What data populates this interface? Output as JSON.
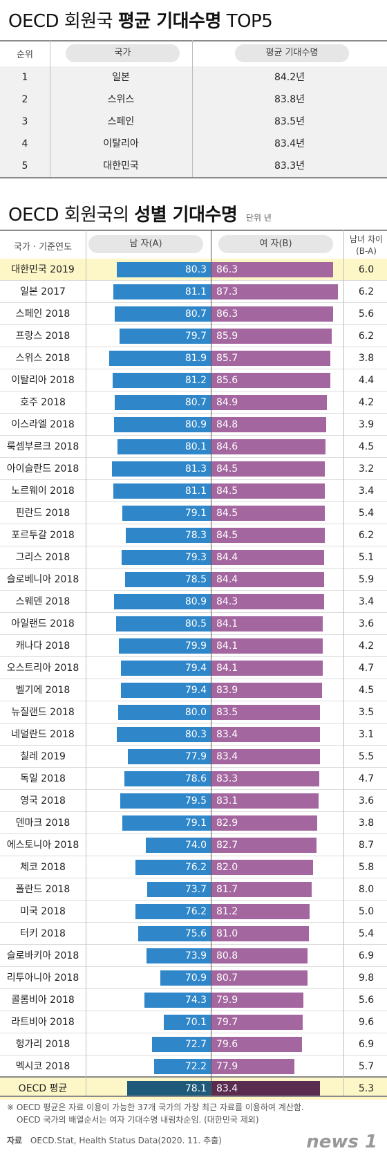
{
  "top5": {
    "title_plain": "OECD 회원국 ",
    "title_bold": "평균 기대수명",
    "title_end": " TOP5",
    "headers": {
      "rank": "순위",
      "country": "국가",
      "value": "평균 기대수명"
    },
    "rows": [
      {
        "rank": "1",
        "country": "일본",
        "value": "84.2년"
      },
      {
        "rank": "2",
        "country": "스위스",
        "value": "83.8년"
      },
      {
        "rank": "3",
        "country": "스페인",
        "value": "83.5년"
      },
      {
        "rank": "4",
        "country": "이탈리아",
        "value": "83.4년"
      },
      {
        "rank": "5",
        "country": "대한민국",
        "value": "83.3년"
      }
    ]
  },
  "chart_data": {
    "type": "bar",
    "title_plain": "OECD 회원국의 ",
    "title_bold": "성별 기대수명",
    "unit": "단위 년",
    "headers": {
      "country": "국가 · 기준연도",
      "male": "남 자(A)",
      "female": "여 자(B)",
      "diff_line1": "남녀 차이",
      "diff_line2": "(B-A)"
    },
    "categories": [
      "대한민국 2019",
      "일본 2017",
      "스페인 2018",
      "프랑스 2018",
      "스위스 2018",
      "이탈리아 2018",
      "호주 2018",
      "이스라엘 2018",
      "룩셈부르크 2018",
      "아이슬란드 2018",
      "노르웨이 2018",
      "핀란드 2018",
      "포르투갈 2018",
      "그리스 2018",
      "슬로베니아 2018",
      "스웨덴 2018",
      "아일랜드 2018",
      "캐나다 2018",
      "오스트리아 2018",
      "벨기에 2018",
      "뉴질랜드 2018",
      "네덜란드 2018",
      "칠레 2019",
      "독일 2018",
      "영국 2018",
      "덴마크 2018",
      "에스토니아 2018",
      "체코 2018",
      "폴란드 2018",
      "미국 2018",
      "터키 2018",
      "슬로바키아 2018",
      "리투아니아 2018",
      "콜롬비아 2018",
      "라트비아 2018",
      "헝가리 2018",
      "멕시코 2018",
      "OECD 평균"
    ],
    "series": [
      {
        "name": "남 자(A)",
        "values": [
          80.3,
          81.1,
          80.7,
          79.7,
          81.9,
          81.2,
          80.7,
          80.9,
          80.1,
          81.3,
          81.1,
          79.1,
          78.3,
          79.3,
          78.5,
          80.9,
          80.5,
          79.9,
          79.4,
          79.4,
          80.0,
          80.3,
          77.9,
          78.6,
          79.5,
          79.1,
          74.0,
          76.2,
          73.7,
          76.2,
          75.6,
          73.9,
          70.9,
          74.3,
          70.1,
          72.7,
          72.2,
          78.1
        ]
      },
      {
        "name": "여 자(B)",
        "values": [
          86.3,
          87.3,
          86.3,
          85.9,
          85.7,
          85.6,
          84.9,
          84.8,
          84.6,
          84.5,
          84.5,
          84.5,
          84.5,
          84.4,
          84.4,
          84.3,
          84.1,
          84.1,
          84.1,
          83.9,
          83.5,
          83.4,
          83.4,
          83.3,
          83.1,
          82.9,
          82.7,
          82.0,
          81.7,
          81.2,
          81.0,
          80.8,
          80.7,
          79.9,
          79.7,
          79.6,
          77.9,
          83.4
        ]
      }
    ],
    "diff": [
      "6.0",
      "6.2",
      "5.6",
      "6.2",
      "3.8",
      "4.4",
      "4.2",
      "3.9",
      "4.5",
      "3.2",
      "3.4",
      "5.4",
      "6.2",
      "5.1",
      "5.9",
      "3.4",
      "3.6",
      "4.2",
      "4.7",
      "4.5",
      "3.5",
      "3.1",
      "5.5",
      "4.7",
      "3.6",
      "3.8",
      "8.7",
      "5.8",
      "8.0",
      "5.0",
      "5.4",
      "6.9",
      "9.8",
      "5.6",
      "9.6",
      "6.9",
      "5.7",
      "5.3"
    ],
    "colors": {
      "male": "#2f86c8",
      "female": "#a3669f",
      "male_avg": "#1f5a7a",
      "female_avg": "#5a2c50",
      "highlight": "#fdf7c8"
    }
  },
  "notes": {
    "line1": "※ OECD 평균은 자료 이용이 가능한 37개 국가의 가장 최근 자료를 이용하여 계산함.",
    "line2": "OECD 국가의 배열순서는 여자 기대수명 내림차순임. (대한민국 제외)",
    "source_label": "자료",
    "source_text": "OECD.Stat, Health Status Data(2020. 11. 추출)"
  },
  "logo": "news 1"
}
